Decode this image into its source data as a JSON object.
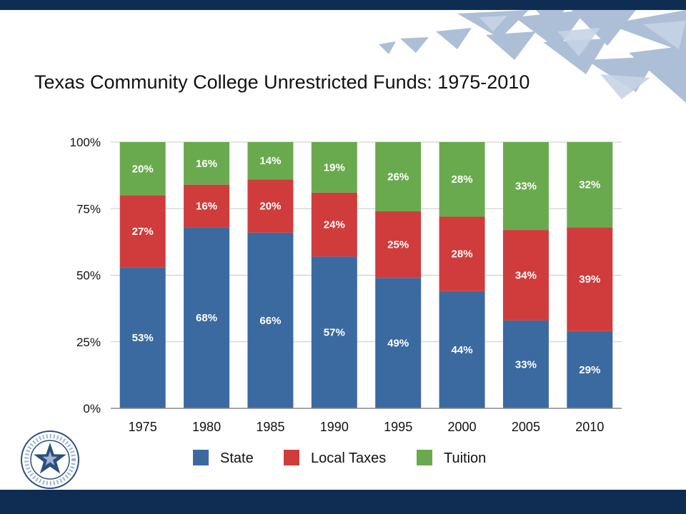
{
  "slide": {
    "title": "Texas Community College Unrestricted Funds: 1975-2010"
  },
  "logo": {
    "icon": "texas-star-seal-icon",
    "ring_text": "TEXAS ASSOCIATION OF COMMUNITY COLLEGES"
  },
  "colors": {
    "band": "#0f2d52",
    "state": "#3b6aa0",
    "local_taxes": "#d03c3c",
    "tuition": "#6aaa4f"
  },
  "chart_data": {
    "type": "bar",
    "stacked": true,
    "percent_scale": true,
    "categories": [
      "1975",
      "1980",
      "1985",
      "1990",
      "1995",
      "2000",
      "2005",
      "2010"
    ],
    "series": [
      {
        "name": "State",
        "color": "#3b6aa0",
        "values": [
          53,
          68,
          66,
          57,
          49,
          44,
          33,
          29
        ],
        "labels": [
          "53%",
          "68%",
          "66%",
          "57%",
          "49%",
          "44%",
          "33%",
          "29%"
        ]
      },
      {
        "name": "Local Taxes",
        "color": "#d03c3c",
        "values": [
          27,
          16,
          20,
          24,
          25,
          28,
          34,
          39
        ],
        "labels": [
          "27%",
          "16%",
          "20%",
          "24%",
          "25%",
          "28%",
          "34%",
          "39%"
        ]
      },
      {
        "name": "Tuition",
        "color": "#6aaa4f",
        "values": [
          20,
          16,
          14,
          19,
          26,
          28,
          33,
          32
        ],
        "labels": [
          "20%",
          "16%",
          "14%",
          "19%",
          "26%",
          "28%",
          "33%",
          "32%"
        ]
      }
    ],
    "y_ticks": [
      {
        "value": 0,
        "label": "0%"
      },
      {
        "value": 25,
        "label": "25%"
      },
      {
        "value": 50,
        "label": "50%"
      },
      {
        "value": 75,
        "label": "75%"
      },
      {
        "value": 100,
        "label": "100%"
      }
    ],
    "ylim": [
      0,
      100
    ],
    "grid": true,
    "legend": "bottom"
  }
}
